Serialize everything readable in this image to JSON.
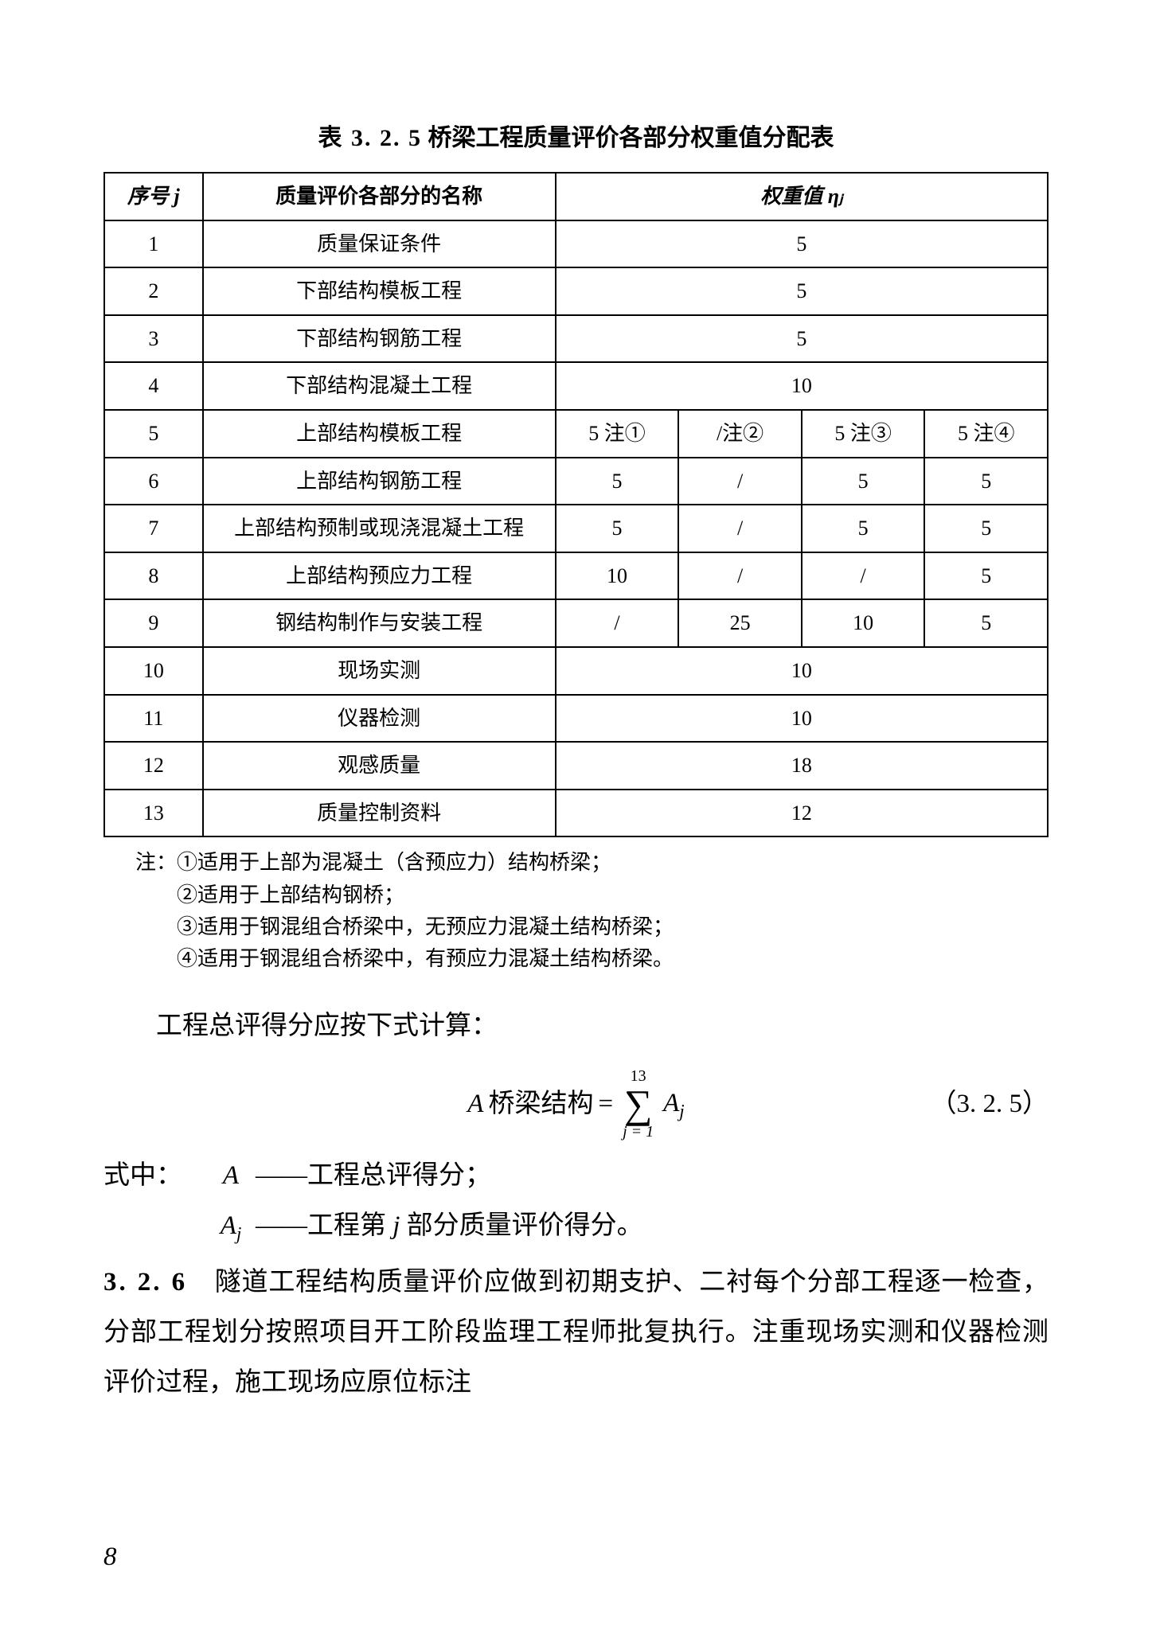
{
  "table": {
    "title_num": "表 3. 2. 5",
    "title_text": "桥梁工程质量评价各部分权重值分配表",
    "headers": {
      "seq": "序号 j",
      "name": "质量评价各部分的名称",
      "weight": "权重值 ηⱼ"
    },
    "rows_simple_top": [
      {
        "seq": "1",
        "name": "质量保证条件",
        "weight": "5"
      },
      {
        "seq": "2",
        "name": "下部结构模板工程",
        "weight": "5"
      },
      {
        "seq": "3",
        "name": "下部结构钢筋工程",
        "weight": "5"
      },
      {
        "seq": "4",
        "name": "下部结构混凝土工程",
        "weight": "10"
      }
    ],
    "rows_split": [
      {
        "seq": "5",
        "name": "上部结构模板工程",
        "c1": "5 注①",
        "c2": "/注②",
        "c3": "5 注③",
        "c4": "5 注④"
      },
      {
        "seq": "6",
        "name": "上部结构钢筋工程",
        "c1": "5",
        "c2": "/",
        "c3": "5",
        "c4": "5"
      },
      {
        "seq": "7",
        "name": "上部结构预制或现浇混凝土工程",
        "c1": "5",
        "c2": "/",
        "c3": "5",
        "c4": "5"
      },
      {
        "seq": "8",
        "name": "上部结构预应力工程",
        "c1": "10",
        "c2": "/",
        "c3": "/",
        "c4": "5"
      },
      {
        "seq": "9",
        "name": "钢结构制作与安装工程",
        "c1": "/",
        "c2": "25",
        "c3": "10",
        "c4": "5"
      }
    ],
    "rows_simple_bot": [
      {
        "seq": "10",
        "name": "现场实测",
        "weight": "10"
      },
      {
        "seq": "11",
        "name": "仪器检测",
        "weight": "10"
      },
      {
        "seq": "12",
        "name": "观感质量",
        "weight": "18"
      },
      {
        "seq": "13",
        "name": "质量控制资料",
        "weight": "12"
      }
    ]
  },
  "notes": {
    "label": "注：",
    "items": [
      "①适用于上部为混凝土（含预应力）结构桥梁；",
      "②适用于上部结构钢桥；",
      "③适用于钢混组合桥梁中，无预应力混凝土结构桥梁；",
      "④适用于钢混组合桥梁中，有预应力混凝土结构桥梁。"
    ]
  },
  "body_intro": "工程总评得分应按下式计算：",
  "formula": {
    "lhs_A": "A",
    "lhs_text": " 桥梁结构 ",
    "eq": " = ",
    "sigma_top": "13",
    "sigma_bot": "j = 1",
    "rhs_A": "A",
    "rhs_sub": "j",
    "number": "（3. 2. 5）"
  },
  "defs": {
    "prefix": "式中：",
    "lines": [
      {
        "sym": "A",
        "sub": "",
        "text": "工程总评得分；"
      },
      {
        "sym": "A",
        "sub": "j",
        "text": "工程第 j 部分质量评价得分。"
      }
    ],
    "dash": "——"
  },
  "para326": {
    "num": "3. 2. 6",
    "text": "　隧道工程结构质量评价应做到初期支护、二衬每个分部工程逐一检查，分部工程划分按照项目开工阶段监理工程师批复执行。注重现场实测和仪器检测评价过程，施工现场应原位标注"
  },
  "page_number": "8",
  "style": {
    "page_bg": "#ffffff",
    "text_color": "#000000",
    "border_color": "#000000",
    "font_body_pt": 33,
    "font_table_pt": 26,
    "font_title_pt": 30
  }
}
